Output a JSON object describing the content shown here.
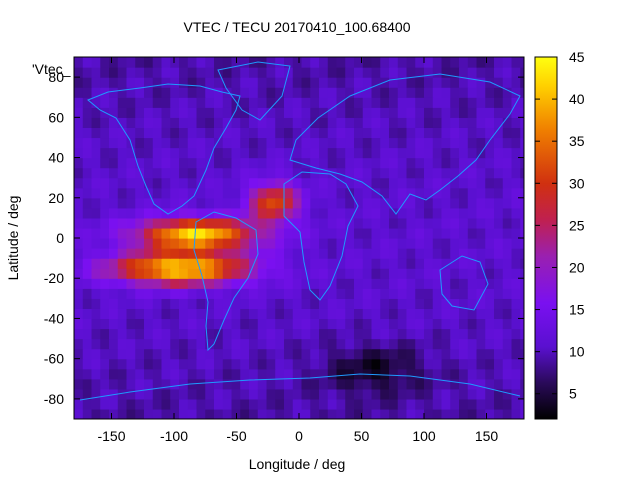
{
  "chart_data": {
    "type": "heatmap",
    "title": "VTEC / TECU 20170410_100.68400",
    "xlabel": "Longitude / deg",
    "ylabel": "Latitude / deg",
    "xlim": [
      -180,
      180
    ],
    "ylim": [
      -90,
      90
    ],
    "xticks": [
      -150,
      -100,
      -50,
      0,
      50,
      100,
      150
    ],
    "yticks": [
      -80,
      -60,
      -40,
      -20,
      0,
      20,
      40,
      60,
      80
    ],
    "grid": false,
    "legend": {
      "label": "'Vtec_",
      "placement": "top-left"
    },
    "colorbar": {
      "range": [
        2,
        45
      ],
      "ticks": [
        5,
        10,
        15,
        20,
        25,
        30,
        35,
        40,
        45
      ],
      "palette": "black-blue-purple-red-orange-yellow"
    },
    "features": [
      {
        "name": "equatorial anomaly crest (south)",
        "lon": -95,
        "lat": -15,
        "lon_width": 55,
        "lat_width": 8,
        "value": 40
      },
      {
        "name": "equatorial anomaly crest (north)",
        "lon": -82,
        "lat": 2,
        "lon_width": 48,
        "lat_width": 8,
        "value": 40
      },
      {
        "name": "atlantic extension",
        "lon": -20,
        "lat": 18,
        "lon_width": 20,
        "lat_width": 10,
        "value": 30
      },
      {
        "name": "background minimum (south)",
        "lon": 60,
        "lat": -65,
        "lon_width": 40,
        "lat_width": 12,
        "value": 3
      }
    ],
    "coastlines": "world continental outlines (blue)"
  }
}
